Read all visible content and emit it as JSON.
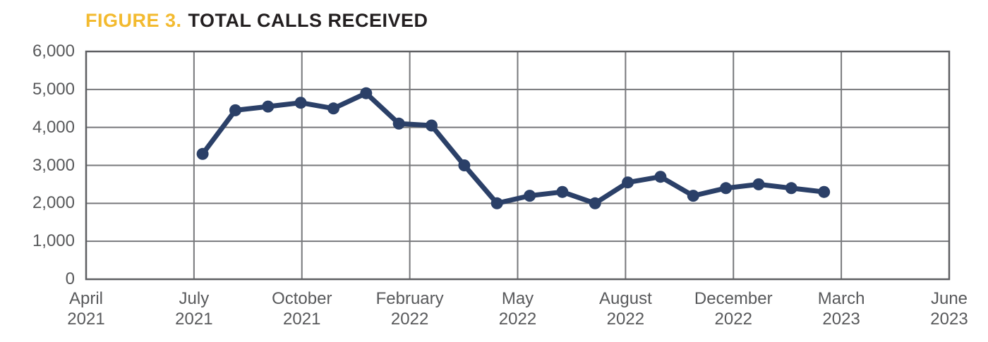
{
  "header": {
    "figure_label": "FIGURE 3.",
    "title": "TOTAL CALLS RECEIVED"
  },
  "colors": {
    "figure_label": "#F3BA2F",
    "title_text": "#231F20",
    "axis_text": "#58595B",
    "gridline": "#77787B",
    "plot_border": "#5E5F62",
    "line": "#2B4068",
    "background": "#FFFFFF"
  },
  "chart_data": {
    "type": "line",
    "title": "FIGURE 3. TOTAL CALLS RECEIVED",
    "grid": "both",
    "legend": "none",
    "x_axis": {
      "tick_labels": [
        {
          "month": "April",
          "year": "2021"
        },
        {
          "month": "July",
          "year": "2021"
        },
        {
          "month": "October",
          "year": "2021"
        },
        {
          "month": "February",
          "year": "2022"
        },
        {
          "month": "May",
          "year": "2022"
        },
        {
          "month": "August",
          "year": "2022"
        },
        {
          "month": "December",
          "year": "2022"
        },
        {
          "month": "March",
          "year": "2023"
        },
        {
          "month": "June",
          "year": "2023"
        }
      ]
    },
    "y_axis": {
      "tick_labels": [
        "0",
        "1,000",
        "2,000",
        "3,000",
        "4,000",
        "5,000",
        "6,000"
      ],
      "min": 0,
      "max": 6000,
      "step": 1000
    },
    "series": [
      {
        "name": "Total calls received",
        "marker": "circle",
        "values": [
          3300,
          4450,
          4550,
          4650,
          4500,
          4900,
          4100,
          4050,
          3000,
          2000,
          2200,
          2300,
          2000,
          2550,
          2700,
          2200,
          2400,
          2500,
          2400,
          2300
        ],
        "x_span_frac": {
          "start": 0.135,
          "end": 0.855
        }
      }
    ]
  }
}
